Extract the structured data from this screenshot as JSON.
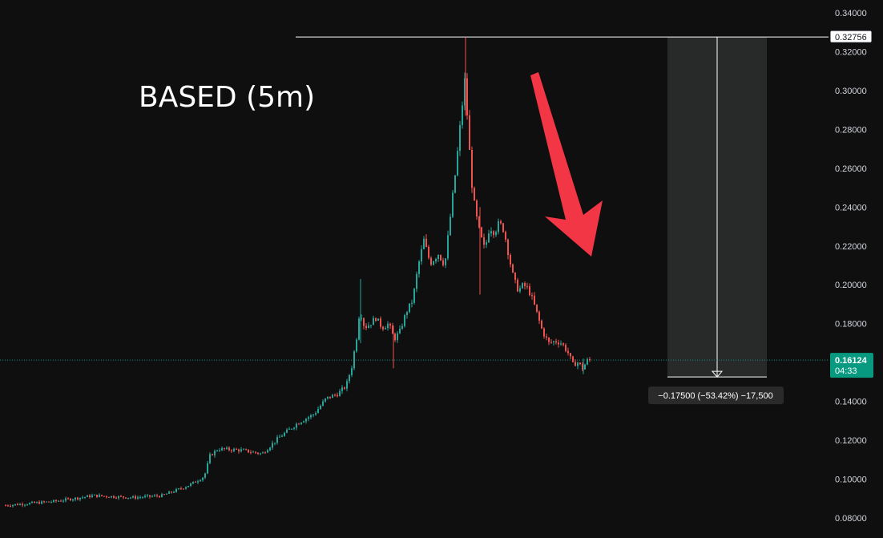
{
  "chart_data": {
    "type": "candlestick",
    "title": "BASED (5m)",
    "y_axis": {
      "side": "right",
      "range": [
        0.078,
        0.345
      ],
      "ticks": [
        "0.08000",
        "0.10000",
        "0.12000",
        "0.14000",
        "0.16000",
        "0.18000",
        "0.20000",
        "0.22000",
        "0.24000",
        "0.26000",
        "0.28000",
        "0.30000",
        "0.32000",
        "0.34000"
      ]
    },
    "grid": false,
    "price_path": [
      [
        0,
        0.0865
      ],
      [
        60,
        0.0885
      ],
      [
        110,
        0.0915
      ],
      [
        160,
        0.0905
      ],
      [
        195,
        0.0915
      ],
      [
        215,
        0.0945
      ],
      [
        232,
        0.0975
      ],
      [
        248,
        0.1015
      ],
      [
        255,
        0.112
      ],
      [
        265,
        0.1155
      ],
      [
        290,
        0.115
      ],
      [
        300,
        0.1145
      ],
      [
        320,
        0.113
      ],
      [
        340,
        0.121
      ],
      [
        365,
        0.129
      ],
      [
        385,
        0.1335
      ],
      [
        400,
        0.1415
      ],
      [
        415,
        0.144
      ],
      [
        425,
        0.148
      ],
      [
        432,
        0.158
      ],
      [
        438,
        0.173
      ],
      [
        442,
        0.1875
      ],
      [
        448,
        0.178
      ],
      [
        455,
        0.18
      ],
      [
        462,
        0.183
      ],
      [
        470,
        0.178
      ],
      [
        478,
        0.18
      ],
      [
        485,
        0.172
      ],
      [
        492,
        0.176
      ],
      [
        500,
        0.186
      ],
      [
        508,
        0.192
      ],
      [
        515,
        0.21
      ],
      [
        522,
        0.223
      ],
      [
        530,
        0.211
      ],
      [
        540,
        0.216
      ],
      [
        548,
        0.21
      ],
      [
        555,
        0.235
      ],
      [
        562,
        0.26
      ],
      [
        568,
        0.285
      ],
      [
        573,
        0.305
      ],
      [
        577,
        0.282
      ],
      [
        581,
        0.255
      ],
      [
        586,
        0.238
      ],
      [
        592,
        0.226
      ],
      [
        598,
        0.218
      ],
      [
        604,
        0.23
      ],
      [
        610,
        0.227
      ],
      [
        616,
        0.232
      ],
      [
        622,
        0.228
      ],
      [
        628,
        0.215
      ],
      [
        634,
        0.203
      ],
      [
        640,
        0.197
      ],
      [
        646,
        0.2
      ],
      [
        652,
        0.198
      ],
      [
        658,
        0.192
      ],
      [
        664,
        0.184
      ],
      [
        670,
        0.176
      ],
      [
        678,
        0.17
      ],
      [
        686,
        0.171
      ],
      [
        694,
        0.17
      ],
      [
        702,
        0.165
      ],
      [
        708,
        0.159
      ],
      [
        714,
        0.16
      ],
      [
        720,
        0.157
      ],
      [
        726,
        0.161
      ],
      [
        731,
        0.1612
      ]
    ],
    "current_price": {
      "value": 0.16124,
      "label": "0.16124",
      "countdown": "04:33",
      "color": "#089981"
    },
    "measure": {
      "high": 0.32756,
      "high_label": "0.32756",
      "low": 0.15256,
      "result_label": "−0.17500 (−53.42%) −17,500"
    },
    "colors": {
      "up": "#26a69a",
      "down": "#ef5350",
      "arrow": "#f23645",
      "axis_text": "#d1d4dc",
      "background": "#0f0f0f",
      "measure_fill": "#2a2e2b"
    }
  }
}
